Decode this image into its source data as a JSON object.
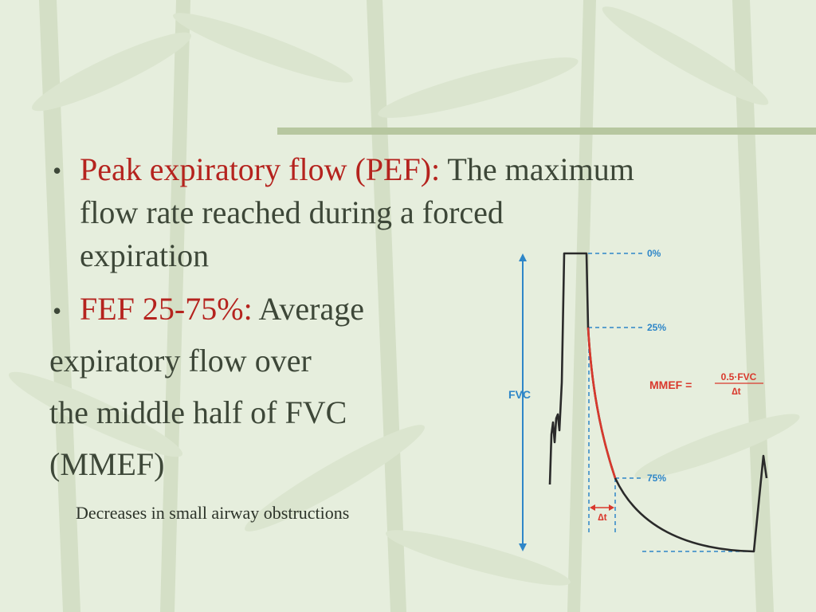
{
  "slide": {
    "bullets": [
      {
        "term": "Peak expiratory flow (PEF):",
        "lines": [
          " The maximum",
          "flow rate reached during a forced",
          "expiration"
        ]
      },
      {
        "term": "FEF 25-75%:",
        "lines": [
          " Average",
          "expiratory flow over",
          "the middle half of FVC",
          "(MMEF)"
        ]
      }
    ],
    "note": "Decreases in small airway obstructions"
  },
  "diagram": {
    "pct_labels": [
      "0%",
      "25%",
      "75%"
    ],
    "fvc_label": "FVC",
    "formula": {
      "lhs": "MMEF =",
      "numerator": "0.5·FVC",
      "denominator": "∆t"
    },
    "delta_label": "∆t",
    "colors": {
      "blue": "#2e86c8",
      "red": "#d9382c",
      "curve": "#2a2a2a",
      "term": "#b5231e"
    }
  }
}
